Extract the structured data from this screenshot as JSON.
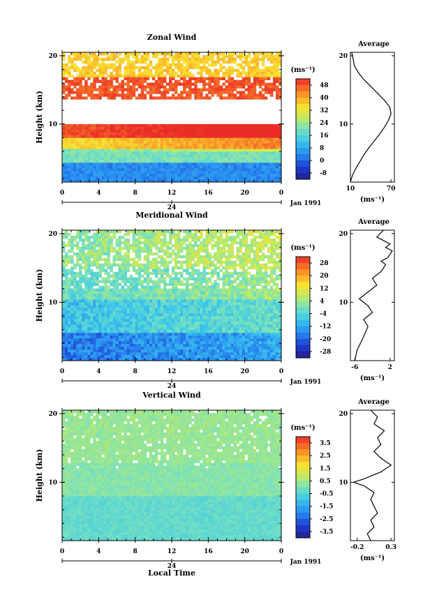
{
  "chart_data": [
    {
      "type": "heatmap",
      "title": "Zonal Wind",
      "ylabel": "Height (km)",
      "x_ticks": [
        "0",
        "4",
        "8",
        "12",
        "16",
        "20",
        "0"
      ],
      "y_ticks": [
        "10",
        "20"
      ],
      "ylim": [
        1.5,
        20.5
      ],
      "xlim": [
        0,
        24
      ],
      "date_mark": "24",
      "date_label": "Jan 1991",
      "colorbar": {
        "unit": "(ms⁻¹)",
        "ticks": [
          "48",
          "40",
          "32",
          "24",
          "16",
          "8",
          "0",
          "-8"
        ],
        "range": [
          -12,
          52
        ]
      },
      "regions": [
        {
          "label": "blue lower band (near 0 to 8)",
          "y": [
            1.5,
            4.5
          ],
          "value": 4
        },
        {
          "label": "cyan-green band",
          "y": [
            4.5,
            6.5
          ],
          "value": 20
        },
        {
          "label": "yellow-orange band",
          "y": [
            6.5,
            8.0
          ],
          "value": 34
        },
        {
          "label": "red jet lower",
          "y": [
            8.0,
            10.0
          ],
          "value": 48
        },
        {
          "label": "missing data core",
          "y": [
            10.0,
            13.5
          ],
          "value": null
        },
        {
          "label": "red jet upper",
          "y": [
            13.5,
            17.0
          ],
          "value": 48
        },
        {
          "label": "orange-yellow top",
          "y": [
            17.0,
            20.5
          ],
          "value": 36
        }
      ],
      "profile": {
        "title": "Average",
        "xlabel": "(ms⁻¹)",
        "x_ticks": [
          "10",
          "70"
        ],
        "xlim": [
          10,
          75
        ],
        "y_ticks": [
          "10",
          "20"
        ],
        "points": [
          [
            10,
            1.5
          ],
          [
            13,
            2.5
          ],
          [
            18,
            3.5
          ],
          [
            24,
            4.5
          ],
          [
            30,
            5.5
          ],
          [
            37,
            6.5
          ],
          [
            45,
            7.5
          ],
          [
            53,
            8.5
          ],
          [
            60,
            9.5
          ],
          [
            66,
            10.5
          ],
          [
            70,
            11.5
          ],
          [
            68,
            12.5
          ],
          [
            60,
            13.5
          ],
          [
            50,
            14.5
          ],
          [
            40,
            15.5
          ],
          [
            30,
            16.5
          ],
          [
            22,
            17.5
          ],
          [
            16,
            18.5
          ],
          [
            14,
            19.5
          ],
          [
            12,
            20.5
          ]
        ]
      }
    },
    {
      "type": "heatmap",
      "title": "Meridional Wind",
      "ylabel": "Height (km)",
      "x_ticks": [
        "0",
        "4",
        "8",
        "12",
        "16",
        "20",
        "0"
      ],
      "y_ticks": [
        "10",
        "20"
      ],
      "ylim": [
        1.5,
        20.5
      ],
      "xlim": [
        0,
        24
      ],
      "date_mark": "24",
      "date_label": "Jan 1991",
      "colorbar": {
        "unit": "(ms⁻¹)",
        "ticks": [
          "28",
          "20",
          "12",
          "4",
          "-4",
          "-12",
          "-20",
          "-28"
        ],
        "range": [
          -32,
          32
        ]
      },
      "regions": [
        {
          "label": "dark blue lower",
          "y": [
            1.5,
            5.5
          ],
          "value": -18
        },
        {
          "label": "blue-cyan mid",
          "y": [
            5.5,
            10.5
          ],
          "value": -8
        },
        {
          "label": "cyan mixed",
          "y": [
            10.5,
            15.0
          ],
          "value": -2
        },
        {
          "label": "cyan-green upper",
          "y": [
            15.0,
            20.5
          ],
          "value": 2
        }
      ],
      "profile": {
        "title": "Average",
        "xlabel": "(ms⁻¹)",
        "x_ticks": [
          "-6",
          "2"
        ],
        "xlim": [
          -7,
          3
        ],
        "y_ticks": [
          "10",
          "20"
        ],
        "points": [
          [
            -6,
            1.5
          ],
          [
            -5.5,
            3
          ],
          [
            -4,
            5
          ],
          [
            -3,
            6.5
          ],
          [
            -4,
            7.5
          ],
          [
            -2,
            8.5
          ],
          [
            -3,
            9.5
          ],
          [
            -5,
            10.5
          ],
          [
            -3,
            11.5
          ],
          [
            -1,
            12.5
          ],
          [
            -2,
            13.5
          ],
          [
            0,
            14.5
          ],
          [
            1,
            15.5
          ],
          [
            0,
            16
          ],
          [
            1.5,
            16.5
          ],
          [
            2.5,
            17.5
          ],
          [
            1,
            18
          ],
          [
            2,
            18.5
          ],
          [
            -1,
            19.5
          ],
          [
            0.5,
            20.5
          ]
        ]
      }
    },
    {
      "type": "heatmap",
      "title": "Vertical Wind",
      "ylabel": "Height (km)",
      "xlabel": "Local Time",
      "x_ticks": [
        "0",
        "4",
        "8",
        "12",
        "16",
        "20",
        "0"
      ],
      "y_ticks": [
        "10",
        "20"
      ],
      "ylim": [
        1.5,
        20.5
      ],
      "xlim": [
        0,
        24
      ],
      "date_mark": "24",
      "date_label": "Jan 1991",
      "colorbar": {
        "unit": "(ms⁻¹)",
        "ticks": [
          "3.5",
          "2.5",
          "1.5",
          "0.5",
          "-0.5",
          "-1.5",
          "-2.5",
          "-3.5"
        ],
        "range": [
          -4,
          4
        ]
      },
      "regions": [
        {
          "label": "light cyan lower",
          "y": [
            1.5,
            8.0
          ],
          "value": -0.3
        },
        {
          "label": "cyan-green mid",
          "y": [
            8.0,
            13.0
          ],
          "value": 0.2
        },
        {
          "label": "green upper",
          "y": [
            13.0,
            20.5
          ],
          "value": 0.4
        }
      ],
      "profile": {
        "title": "Average",
        "xlabel": "(ms⁻¹)",
        "x_ticks": [
          "-0.2",
          "0.3"
        ],
        "xlim": [
          -0.3,
          0.35
        ],
        "y_ticks": [
          "10",
          "20"
        ],
        "points": [
          [
            0.0,
            1.5
          ],
          [
            -0.05,
            2.5
          ],
          [
            0.05,
            3.5
          ],
          [
            0.0,
            4.5
          ],
          [
            0.1,
            5.5
          ],
          [
            0.05,
            6.5
          ],
          [
            0.0,
            7.5
          ],
          [
            0.05,
            8.5
          ],
          [
            -0.1,
            9.5
          ],
          [
            -0.25,
            10.0
          ],
          [
            -0.1,
            10.5
          ],
          [
            0.15,
            11.5
          ],
          [
            0.3,
            12.5
          ],
          [
            0.15,
            13.5
          ],
          [
            0.05,
            14.5
          ],
          [
            0.15,
            15.5
          ],
          [
            0.1,
            16.5
          ],
          [
            0.2,
            17.5
          ],
          [
            0.05,
            18.5
          ],
          [
            0.1,
            19.5
          ],
          [
            0.0,
            20.5
          ]
        ]
      }
    }
  ]
}
